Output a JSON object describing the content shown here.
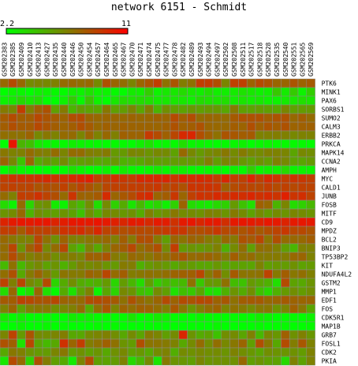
{
  "chart_data": {
    "type": "heatmap",
    "title": "network 6151 - Schmidt",
    "scale": {
      "min": 2.2,
      "max": 11,
      "min_label": "2.2",
      "max_label": "11",
      "low_color": "#00ff00",
      "high_color": "#ff0000"
    },
    "columns": [
      "GSM202383",
      "GSM202385",
      "GSM202409",
      "GSM202410",
      "GSM202413",
      "GSM202427",
      "GSM202435",
      "GSM202440",
      "GSM202446",
      "GSM202450",
      "GSM202454",
      "GSM202457",
      "GSM202464",
      "GSM202465",
      "GSM202467",
      "GSM202470",
      "GSM202471",
      "GSM202474",
      "GSM202475",
      "GSM202477",
      "GSM202478",
      "GSM202482",
      "GSM202489",
      "GSM202493",
      "GSM202494",
      "GSM202497",
      "GSM202502",
      "GSM202508",
      "GSM202511",
      "GSM202517",
      "GSM202518",
      "GSM202528",
      "GSM202535",
      "GSM202540",
      "GSM202551",
      "GSM202565",
      "GSM202569"
    ],
    "rows": [
      "PTK6",
      "MINK1",
      "PAX6",
      "SORBS1",
      "SUMO2",
      "CALM3",
      "ERBB2",
      "PRKCA",
      "MAPK14",
      "CCNA2",
      "AMPH",
      "MYC",
      "CALD1",
      "JUNB",
      "FOSB",
      "MITF",
      "CD9",
      "MPDZ",
      "BCL2",
      "BNIP3",
      "TP53BP2",
      "KIT",
      "NDUFA4L2",
      "GSTM2",
      "MMP1",
      "EDF1",
      "FOS",
      "CDK5R1",
      "MAP1B",
      "GRB7",
      "FOSL1",
      "CDK2",
      "PKIA"
    ],
    "values": [
      [
        7.4,
        8.4,
        7.4,
        6.2,
        6.4,
        6.3,
        6.6,
        7.3,
        7.4,
        7.2,
        7.4,
        6.2,
        8.2,
        7.5,
        7.2,
        6.4,
        7.5,
        8.1,
        8.9,
        7.1,
        8.1,
        6.7,
        7.1,
        8.9,
        8.9,
        8.3,
        6.4,
        8.8,
        8.8,
        7.6,
        8.4,
        8.1,
        7.5,
        7.5,
        8.1,
        7.6,
        7.9
      ],
      [
        2.2,
        2.6,
        2.5,
        2.2,
        2.7,
        2.6,
        2.4,
        2.3,
        2.8,
        2.6,
        3.2,
        2.6,
        2.6,
        2.4,
        2.3,
        2.9,
        2.8,
        3.9,
        2.6,
        3,
        3,
        3.4,
        3,
        2.8,
        3.3,
        2.8,
        2.8,
        2.9,
        3.2,
        3,
        2.7,
        2.8,
        4.1,
        2.9,
        4,
        2.6,
        3.9
      ],
      [
        2.6,
        2.9,
        3.5,
        3,
        3.3,
        2.2,
        2.2,
        2.7,
        3.9,
        2.4,
        4.2,
        2.7,
        2.2,
        3,
        3.4,
        3.2,
        3.4,
        3.3,
        2.9,
        3,
        3,
        3,
        2.7,
        3.4,
        3.2,
        3.1,
        3.3,
        2.8,
        3.1,
        2.8,
        3,
        2.7,
        2.6,
        2.9,
        3,
        3.3,
        3.1
      ],
      [
        6.8,
        6.3,
        8.9,
        6.6,
        7.7,
        8.2,
        5.5,
        6.8,
        4.8,
        5.6,
        5.4,
        5.3,
        6.9,
        5.5,
        5.6,
        6.4,
        5.3,
        6.7,
        4.8,
        6.1,
        5.5,
        5.4,
        5.8,
        5.5,
        5.8,
        5.7,
        5.2,
        6.8,
        5.5,
        5.4,
        5.6,
        5.5,
        5.3,
        6.4,
        5.5,
        5.6,
        5.7
      ],
      [
        7.9,
        8.4,
        7.8,
        7.8,
        8.5,
        8.1,
        7.9,
        7.6,
        8.3,
        8.4,
        7.6,
        7.4,
        7.5,
        7.5,
        7.4,
        7.6,
        7.4,
        7.5,
        7.7,
        7.5,
        8.4,
        7.8,
        8.3,
        7.3,
        7.5,
        7.4,
        7.3,
        7.9,
        8.2,
        8.2,
        8.2,
        7.8,
        8.1,
        8.2,
        7.4,
        7.8,
        7.3
      ],
      [
        7.8,
        8.3,
        7.9,
        7.9,
        8.5,
        8.1,
        7.8,
        7.6,
        7.8,
        8.3,
        7.9,
        7.4,
        7.7,
        7.5,
        7.7,
        7.6,
        7.6,
        7.6,
        7.5,
        7.7,
        8.2,
        7.7,
        7.8,
        8.2,
        7.5,
        7.4,
        7.4,
        7.8,
        7.6,
        8.3,
        7.7,
        8.1,
        7.8,
        8.2,
        7.6,
        7.7,
        7.7
      ],
      [
        7.2,
        7.1,
        7.1,
        7.6,
        6.3,
        6.9,
        6.5,
        7.3,
        7.3,
        6.4,
        7.5,
        6.5,
        7.4,
        6.6,
        7.7,
        7.6,
        7.6,
        9,
        8.4,
        7.7,
        8.6,
        9.6,
        9.7,
        8.3,
        7.7,
        7.1,
        8.1,
        8,
        7.8,
        7.9,
        6.5,
        6.6,
        6.7,
        6.6,
        6.3,
        6.5,
        6.5
      ],
      [
        2.2,
        10.2,
        4.8,
        4.4,
        3,
        2.5,
        2.5,
        2.4,
        2.8,
        2.6,
        2.5,
        2.4,
        2.3,
        2.4,
        2.4,
        2.3,
        2.8,
        3.2,
        2.4,
        2.5,
        2.4,
        3.3,
        2.5,
        2.6,
        2.4,
        2.3,
        2.4,
        2.5,
        2.7,
        2.2,
        2.5,
        2.6,
        2.4,
        2.4,
        2.4,
        2.4,
        2.3
      ],
      [
        6.9,
        6.5,
        6.6,
        7.3,
        6.8,
        6.6,
        7.3,
        6.4,
        7.3,
        7.3,
        6.7,
        6.5,
        6.8,
        5.7,
        5.7,
        6.4,
        6.3,
        5.9,
        6.3,
        6.2,
        5.4,
        7.4,
        6.3,
        5.7,
        6.2,
        6.4,
        6.9,
        6.2,
        6.8,
        6.3,
        6.2,
        6.6,
        6.5,
        6.4,
        5.3,
        6.3,
        6.1
      ],
      [
        7.5,
        6.3,
        4.2,
        7.5,
        5.1,
        5.7,
        5.4,
        6.2,
        5.2,
        5.5,
        5.7,
        5.2,
        5.2,
        5.8,
        4.9,
        4.9,
        5.2,
        5.8,
        5.5,
        5.5,
        5.6,
        5.7,
        5.7,
        5.8,
        6.7,
        5.6,
        6.4,
        6.4,
        5.8,
        5.4,
        6,
        5.6,
        6.6,
        6.3,
        5.4,
        5.3,
        5.7
      ],
      [
        2.2,
        3.2,
        2.5,
        2.3,
        2.2,
        2.2,
        2.3,
        2.3,
        3.1,
        2.6,
        2.2,
        2.3,
        2.7,
        2.2,
        2.9,
        2.4,
        2.3,
        2.5,
        2.9,
        2.5,
        2.9,
        2.8,
        2.4,
        2.4,
        2.5,
        2.5,
        2.2,
        2.6,
        2.4,
        3.8,
        2.6,
        2.8,
        2.7,
        3.5,
        2.5,
        2.6,
        2.6
      ],
      [
        8.9,
        9.2,
        9.2,
        9.1,
        9.3,
        9.5,
        9.2,
        9.2,
        9.5,
        9.7,
        9.9,
        8.8,
        8.8,
        9.3,
        9.1,
        8.9,
        9.6,
        9.5,
        9.6,
        9.7,
        9.2,
        9.7,
        9.4,
        9.6,
        9.4,
        8.9,
        9.7,
        8.9,
        8.8,
        9.7,
        8.8,
        9.5,
        9.2,
        8.9,
        9.2,
        9.1,
        8.8
      ],
      [
        8.7,
        8.8,
        8.6,
        8.7,
        8.1,
        8.3,
        8.2,
        8.8,
        8.1,
        8.7,
        8.2,
        7.6,
        8.6,
        8.8,
        8.8,
        8.9,
        8.9,
        8.9,
        9.1,
        8.3,
        8.8,
        8.2,
        9.2,
        9.2,
        9.3,
        9.1,
        7.7,
        8.4,
        8.7,
        8.6,
        8.5,
        8.9,
        8.4,
        8.8,
        8.5,
        8.8,
        8.7
      ],
      [
        7.3,
        6.6,
        8.9,
        8.8,
        9.3,
        8.7,
        8.3,
        7.3,
        9.2,
        7.6,
        7.6,
        7.9,
        9.5,
        7.5,
        8,
        8.4,
        9.3,
        9.6,
        7.5,
        7.8,
        9.1,
        7.5,
        8.8,
        9.3,
        9.2,
        9.6,
        9.3,
        9.5,
        9.4,
        9.7,
        9.3,
        9.5,
        9.2,
        9.9,
        9.2,
        9.4,
        8.7
      ],
      [
        3.4,
        2.6,
        7.3,
        3.6,
        5.8,
        6.1,
        2.9,
        2.6,
        5.3,
        4.6,
        6.1,
        3.3,
        6.2,
        3.8,
        5.1,
        3.1,
        4.6,
        3.2,
        3.7,
        2.7,
        3.8,
        7.6,
        3.4,
        3.1,
        2.9,
        3.5,
        3.8,
        5.7,
        4.3,
        3.3,
        7.7,
        7.4,
        4.8,
        6.4,
        3.4,
        3.8,
        4.7
      ],
      [
        5.9,
        6.2,
        7.4,
        4.8,
        6.1,
        5.7,
        5.5,
        5.9,
        5.4,
        4.3,
        6,
        5,
        6.3,
        6.2,
        5.8,
        6,
        5.1,
        6.6,
        5.8,
        6.1,
        6.9,
        6.2,
        6.2,
        6,
        6.6,
        6.4,
        5.9,
        6.8,
        6.2,
        5.4,
        6.2,
        5.7,
        6.2,
        5.9,
        6.4,
        6.2,
        5.9
      ],
      [
        9.8,
        10.1,
        10.2,
        10.1,
        10.2,
        10.2,
        9.8,
        10,
        10.2,
        10.2,
        10.1,
        10.3,
        10.1,
        9.9,
        9.7,
        10.1,
        10,
        9.6,
        10.1,
        10,
        9.3,
        10.1,
        10.2,
        9.7,
        10.1,
        10.1,
        9.4,
        10.1,
        10.2,
        10.1,
        9.9,
        10.2,
        10.1,
        9.8,
        10.1,
        10.2,
        10.1
      ],
      [
        8.9,
        8.9,
        7.8,
        8.9,
        8.7,
        8.8,
        8.5,
        9.3,
        9.3,
        9.5,
        8.8,
        9.7,
        8.7,
        8.7,
        8.3,
        8.5,
        8.5,
        8.4,
        8.9,
        9,
        9.2,
        9.1,
        8.3,
        8.3,
        8.6,
        9.1,
        8.5,
        8.5,
        8.1,
        8.5,
        7.9,
        8.3,
        8.7,
        9.1,
        8.5,
        8.5,
        8.1
      ],
      [
        7.4,
        6.9,
        6.5,
        6.5,
        8.6,
        7.1,
        6,
        7.6,
        6.6,
        6.5,
        6.9,
        7.1,
        7.4,
        6.6,
        7.8,
        6.8,
        8.3,
        8.3,
        6.8,
        5.5,
        7.5,
        7,
        7.6,
        7.4,
        6.8,
        6.4,
        7.4,
        6.8,
        8.2,
        7.9,
        8.6,
        7,
        8.3,
        7.3,
        7.4,
        7.4,
        7.8
      ],
      [
        7.3,
        8.6,
        5.9,
        7.7,
        8.7,
        6.3,
        7.3,
        8.5,
        5.4,
        4.6,
        6.4,
        5.2,
        6.5,
        7.5,
        7.8,
        8.5,
        7.2,
        7.7,
        8.3,
        6.2,
        8.9,
        5.7,
        5.9,
        5.7,
        6,
        6.6,
        4.9,
        6.2,
        7.2,
        5.5,
        7.2,
        7.1,
        6.6,
        5.5,
        4.7,
        6.6,
        6.5
      ],
      [
        7.3,
        8.4,
        7.2,
        6.6,
        7,
        6.9,
        6.1,
        6.7,
        6.7,
        6.3,
        7.7,
        7.6,
        8.1,
        6.8,
        6.6,
        7.4,
        7.2,
        6.9,
        7.4,
        7.1,
        7.8,
        8,
        7.3,
        7.4,
        7.6,
        7.3,
        6.6,
        7.8,
        7.1,
        7.3,
        6.8,
        6.8,
        6.8,
        6.7,
        7.4,
        7.5,
        6.5
      ],
      [
        4.6,
        7.1,
        4.6,
        5.8,
        6.3,
        5.4,
        5.9,
        4.9,
        5.7,
        6.5,
        6.2,
        6.5,
        5.9,
        5.7,
        6.8,
        6.7,
        4.9,
        5.7,
        6.1,
        5.7,
        5.2,
        5.8,
        5.6,
        5.3,
        5.3,
        5.8,
        5.2,
        5.4,
        5.4,
        5.3,
        6.5,
        5.5,
        5.8,
        5.6,
        6,
        5.4,
        5.7
      ],
      [
        7.2,
        8.2,
        5.2,
        6.8,
        7.6,
        6.7,
        5.7,
        7,
        6.8,
        6.8,
        7.6,
        7.3,
        8.6,
        7.3,
        7.8,
        6.7,
        6.9,
        7.1,
        7,
        7.2,
        7.6,
        7.7,
        7.7,
        8.6,
        6.8,
        7.7,
        6.1,
        7.9,
        7,
        7,
        7.1,
        8.7,
        6.8,
        7.8,
        6.9,
        7.2,
        6.6
      ],
      [
        8.7,
        6.6,
        8.6,
        6.3,
        5.8,
        8.4,
        3.7,
        5.1,
        6.1,
        5.1,
        4.8,
        5,
        5.7,
        3.6,
        5.6,
        4.7,
        3.4,
        5.5,
        4,
        4.7,
        4.4,
        4.6,
        7.1,
        4.1,
        5.7,
        5.7,
        7.1,
        4.5,
        4.3,
        5.7,
        5.3,
        4.9,
        3.3,
        8.4,
        5.4,
        5.2,
        5.9
      ],
      [
        3.4,
        7.4,
        2.4,
        3.4,
        7.5,
        3.3,
        2.3,
        5.1,
        3.2,
        5.4,
        6.5,
        2.6,
        5.3,
        3.7,
        6.3,
        5.9,
        4.4,
        4.1,
        6.2,
        5.5,
        3.2,
        4.4,
        4.1,
        5.3,
        3.3,
        3.2,
        4.9,
        5.9,
        5.1,
        6.1,
        4.4,
        3.6,
        4.9,
        5.7,
        6.1,
        5.6,
        6.1
      ],
      [
        7.9,
        7.8,
        8.7,
        8.5,
        8.1,
        8.1,
        8.5,
        7.6,
        7.4,
        7.3,
        8.3,
        8.4,
        8.2,
        7.9,
        7.1,
        8.2,
        7.4,
        7,
        7.5,
        8.4,
        7.6,
        8.4,
        8.1,
        8.5,
        8.4,
        7.6,
        8,
        7.1,
        7.8,
        7.9,
        7.9,
        7.4,
        7.5,
        7.9,
        7.6,
        7.5,
        7.5
      ],
      [
        6.5,
        7.5,
        5.4,
        6.6,
        6.9,
        6.8,
        6,
        6.3,
        6.6,
        7.3,
        5.1,
        7.1,
        8,
        6.4,
        7.6,
        7.2,
        7.7,
        7.6,
        7.2,
        6.6,
        8,
        6.9,
        5.8,
        6.6,
        7.2,
        7.6,
        6.4,
        7.1,
        6.8,
        6.2,
        6.8,
        6.9,
        5.9,
        6.4,
        7.7,
        6.9,
        5.3
      ],
      [
        2.9,
        2.3,
        2.8,
        2.2,
        2.3,
        2.3,
        2.2,
        2.2,
        2.8,
        2.6,
        2.6,
        2.3,
        2.3,
        2.2,
        2.3,
        3,
        2.2,
        2.4,
        2.9,
        2.7,
        2.3,
        2.3,
        2.2,
        2.5,
        2.3,
        2.3,
        2.2,
        2.3,
        2.3,
        2.3,
        2.8,
        2.5,
        2.2,
        2.3,
        2.3,
        2.2,
        2.6
      ],
      [
        2.2,
        2.2,
        2.6,
        2.2,
        2.2,
        2.5,
        2.2,
        2.4,
        2.2,
        2.2,
        2.2,
        2.4,
        2.2,
        2.4,
        2.2,
        2.2,
        2.2,
        2.3,
        2.3,
        2.3,
        2.2,
        2.2,
        2.3,
        2.3,
        2.2,
        2.5,
        2.2,
        2.2,
        2.2,
        2.2,
        2.4,
        2.2,
        2.3,
        2.4,
        2.2,
        2.2,
        2.4
      ],
      [
        6.4,
        8.7,
        5.7,
        8.1,
        6.2,
        6.1,
        6.4,
        6.7,
        5.2,
        5.2,
        6.2,
        6.4,
        6.6,
        6.1,
        5.2,
        6.2,
        5.3,
        6.8,
        6.4,
        5.5,
        6.2,
        9.7,
        5.9,
        5.1,
        5.4,
        4.3,
        6.1,
        6.2,
        5.3,
        6.6,
        4.6,
        6.3,
        5.8,
        7.7,
        6,
        6.6,
        5.8
      ],
      [
        8.2,
        7.7,
        3.2,
        8.6,
        5.3,
        4.6,
        5.2,
        9.3,
        7.5,
        8.9,
        6.7,
        7.1,
        7.7,
        7.1,
        5.9,
        5.6,
        8.3,
        7,
        7,
        6.8,
        6.5,
        5.2,
        6.2,
        7.3,
        6.1,
        7.2,
        6.3,
        6.9,
        7.5,
        5.5,
        8.3,
        6.9,
        5.2,
        8.4,
        6.7,
        8,
        6.5
      ],
      [
        5.2,
        6.9,
        6.6,
        5.9,
        5.7,
        5.6,
        6.4,
        6.9,
        5.6,
        6,
        5.5,
        5.9,
        5.2,
        6,
        6.3,
        5.5,
        5.8,
        5.2,
        6.2,
        6.5,
        5,
        6.2,
        6,
        6.3,
        6.1,
        6.2,
        5.9,
        6.5,
        6.1,
        5.8,
        5.3,
        6.1,
        5.9,
        5.9,
        6,
        5.6,
        6.5
      ],
      [
        3,
        8.4,
        7.3,
        3.8,
        8.2,
        6.7,
        5.5,
        5.1,
        2.9,
        6.4,
        8.4,
        5.5,
        5.4,
        5.6,
        6.5,
        3.5,
        4.7,
        6.2,
        3.1,
        6.8,
        5.9,
        5.8,
        5.5,
        6.4,
        5.9,
        6,
        6,
        6,
        7.4,
        5.5,
        5.9,
        5.5,
        5.4,
        3.5,
        6.5,
        5.4,
        6.5
      ]
    ]
  }
}
